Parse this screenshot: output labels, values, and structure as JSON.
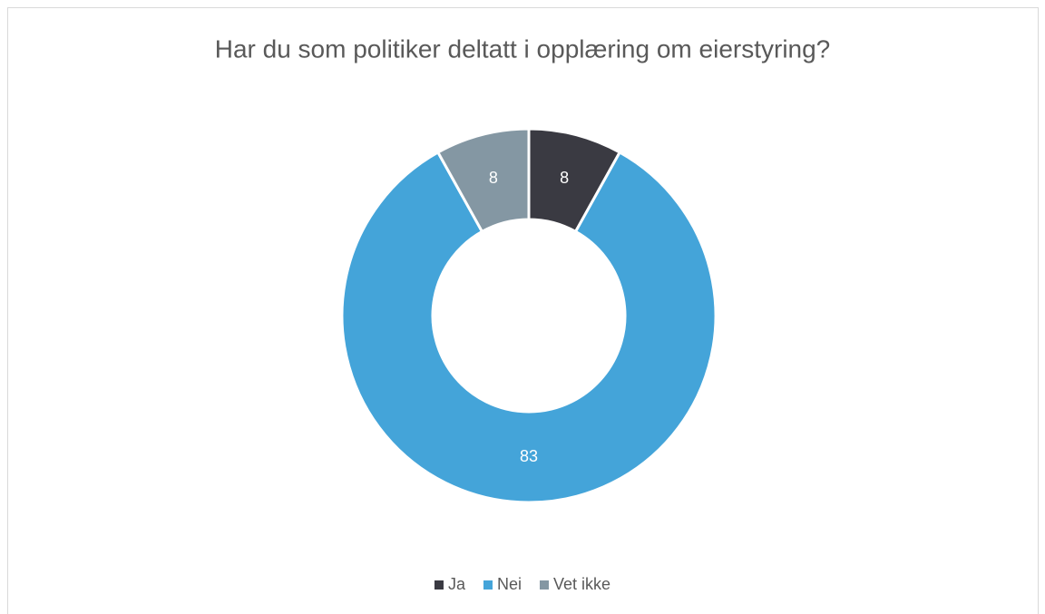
{
  "chart_data": {
    "type": "pie",
    "title": "Har du som politiker deltatt i opplæring om eierstyring?",
    "categories": [
      "Ja",
      "Nei",
      "Vet ikke"
    ],
    "values": [
      8,
      83,
      8
    ],
    "colors": [
      "#3a3a42",
      "#44a4d9",
      "#8497a3"
    ],
    "legend": "bottom"
  }
}
